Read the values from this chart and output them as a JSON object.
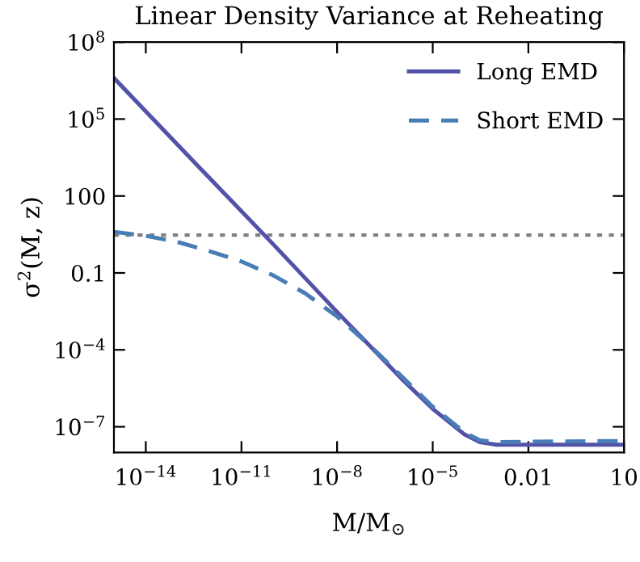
{
  "chart_data": {
    "type": "line",
    "title": "Linear Density Variance at Reheating",
    "xlabel": "M/M$_{⊙}$",
    "ylabel": "σ$^{2}$(M, z)",
    "log": "xy",
    "xlim": [
      1e-15,
      10
    ],
    "ylim": [
      1e-08,
      100000000.0
    ],
    "xticks": [
      {
        "value": 1e-14,
        "label": "10$^{−14}$"
      },
      {
        "value": 1e-11,
        "label": "10$^{−11}$"
      },
      {
        "value": 1e-08,
        "label": "10$^{−8}$"
      },
      {
        "value": 1e-05,
        "label": "10$^{−5}$"
      },
      {
        "value": 0.01,
        "label": "0.01"
      },
      {
        "value": 10,
        "label": "10"
      }
    ],
    "yticks": [
      {
        "value": 1e-07,
        "label": "10$^{−7}$"
      },
      {
        "value": 0.0001,
        "label": "10$^{−4}$"
      },
      {
        "value": 0.1,
        "label": "0.1"
      },
      {
        "value": 100,
        "label": "100"
      },
      {
        "value": 100000.0,
        "label": "10$^{5}$"
      },
      {
        "value": 100000000.0,
        "label": "10$^{8}$"
      }
    ],
    "legend": "top right",
    "grid": false,
    "ref_lines": [
      {
        "axis": "y",
        "value": 3,
        "color": "#808080",
        "line_style": "dotted"
      }
    ],
    "series": [
      {
        "name": "Long EMD",
        "color": "#5252a8",
        "line_style": "solid",
        "x": [
          1e-15,
          1e-14,
          1e-12,
          1e-10,
          1e-08,
          1e-06,
          1e-05,
          0.0001,
          0.0003,
          0.001,
          0.01,
          10
        ],
        "values": [
          4000000.0,
          200000.0,
          500,
          1.3,
          0.003,
          8e-06,
          5e-07,
          5e-08,
          2.5e-08,
          2e-08,
          2e-08,
          2e-08
        ]
      },
      {
        "name": "Short EMD",
        "color": "#4a7db5",
        "line_style": "dashed",
        "x": [
          1e-15,
          1e-14,
          1e-13,
          1e-12,
          1e-11,
          1e-10,
          1e-09,
          1e-08,
          1e-07,
          1e-06,
          1e-05,
          0.0001,
          0.0003,
          0.001,
          0.01,
          10
        ],
        "values": [
          4,
          2.8,
          1.6,
          0.7,
          0.28,
          0.08,
          0.016,
          0.002,
          0.00016,
          1e-05,
          6e-07,
          6e-08,
          3e-08,
          2.5e-08,
          2.6e-08,
          2.8e-08
        ]
      }
    ]
  }
}
